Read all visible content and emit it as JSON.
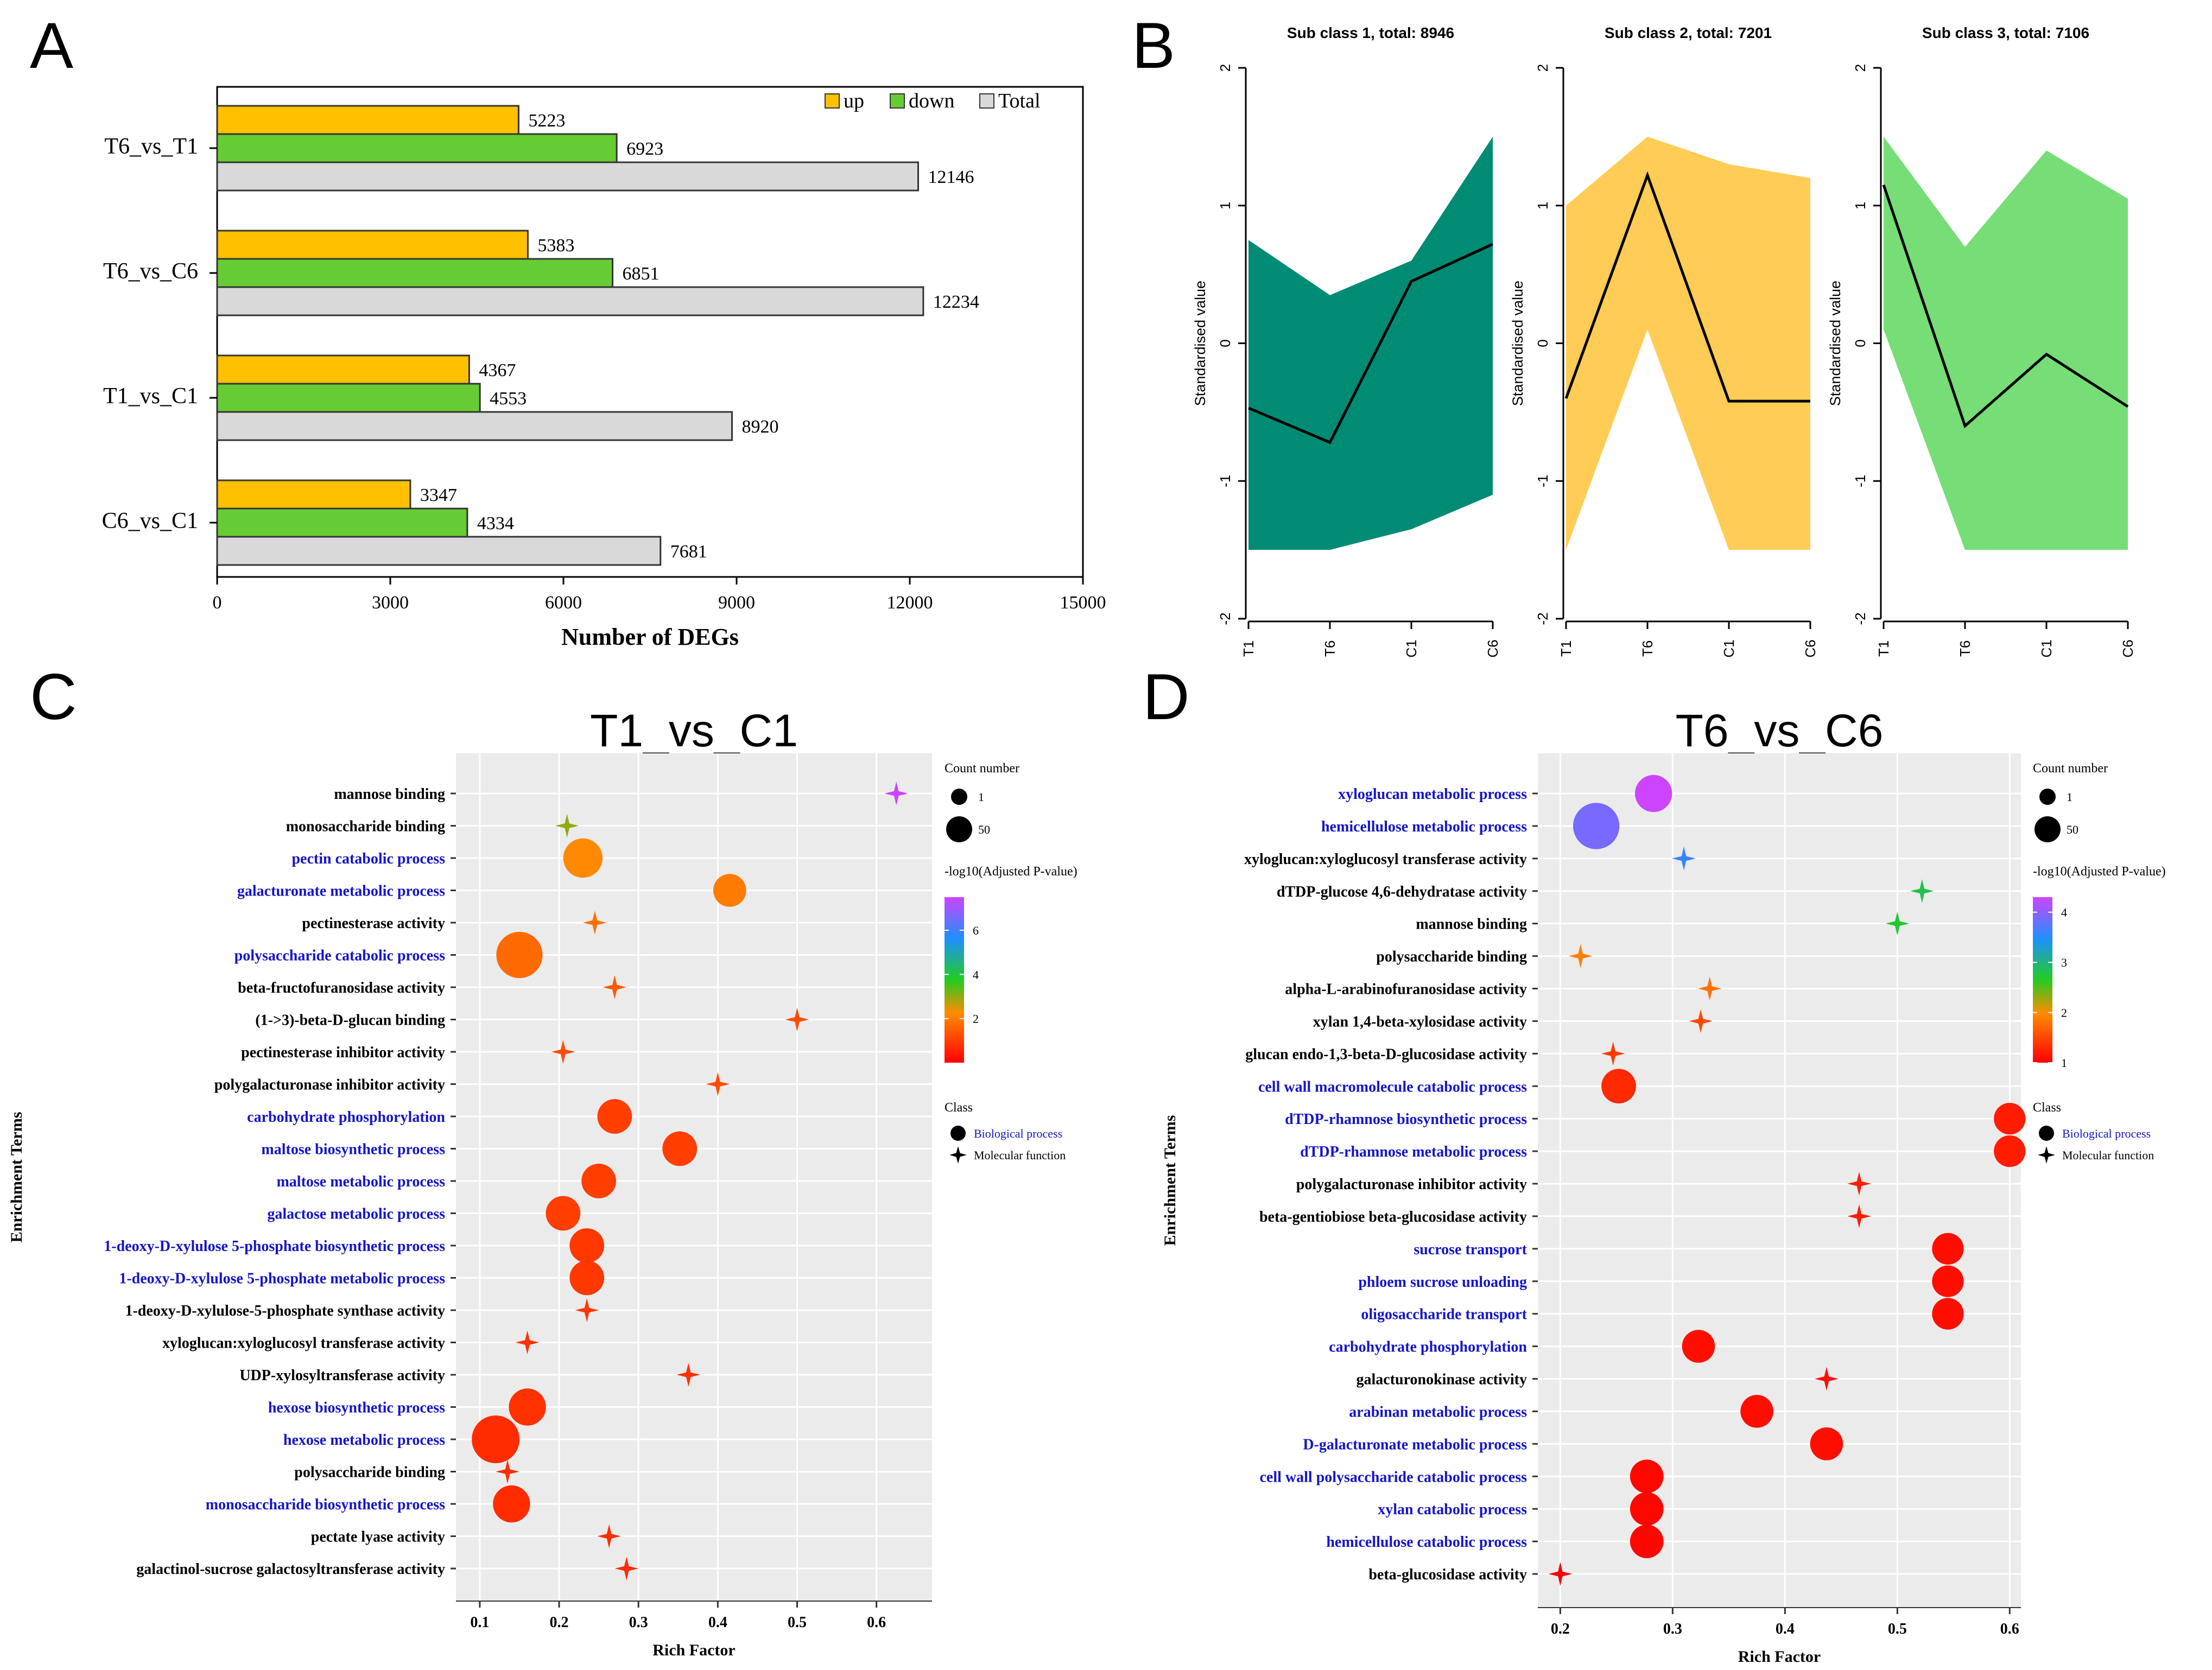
{
  "panels": {
    "a": "A",
    "b": "B",
    "c": "C",
    "d": "D"
  },
  "chart_data": [
    {
      "id": "A",
      "type": "bar",
      "orientation": "horizontal",
      "categories": [
        "T6_vs_T1",
        "T6_vs_C6",
        "T1_vs_C1",
        "C6_vs_C1"
      ],
      "series": [
        {
          "name": "up",
          "color": "#FFC000",
          "values": [
            5223,
            5383,
            4367,
            3347
          ]
        },
        {
          "name": "down",
          "color": "#66CC33",
          "values": [
            6923,
            6851,
            4553,
            4334
          ]
        },
        {
          "name": "Total",
          "color": "#D9D9D9",
          "values": [
            12146,
            12234,
            8920,
            7681
          ]
        }
      ],
      "value_labels": [
        [
          "5223",
          "6923",
          "12146"
        ],
        [
          "5383",
          "6851",
          "12234"
        ],
        [
          "4367",
          "4553",
          "8920"
        ],
        [
          "3347",
          "4334",
          "7681"
        ]
      ],
      "xlabel": "Number of DEGs",
      "xlim": [
        0,
        15000
      ],
      "xticks": [
        "0",
        "3000",
        "6000",
        "9000",
        "12000",
        "15000"
      ],
      "legend": [
        "up",
        "down",
        "Total"
      ]
    },
    {
      "id": "B",
      "type": "line",
      "ylabel": "Standardised value",
      "x_categories": [
        "T1",
        "T6",
        "C1",
        "C6"
      ],
      "ylim": [
        -2,
        2
      ],
      "yticks": [
        "-2",
        "-1",
        "0",
        "1",
        "2"
      ],
      "subplots": [
        {
          "title": "Sub class 1, total: 8946",
          "color": "#008B74",
          "mean": [
            -0.47,
            -0.72,
            0.45,
            0.72
          ],
          "upper": [
            0.75,
            0.35,
            0.6,
            1.5
          ],
          "lower": [
            -1.5,
            -1.5,
            -1.35,
            -1.1
          ]
        },
        {
          "title": "Sub class 2, total: 7201",
          "color": "#FFCC55",
          "mean": [
            -0.4,
            1.22,
            -0.42,
            -0.42
          ],
          "upper": [
            1.0,
            1.5,
            1.3,
            1.2
          ],
          "lower": [
            -1.5,
            0.1,
            -1.5,
            -1.5
          ]
        },
        {
          "title": "Sub class 3, total: 7106",
          "color": "#77DD77",
          "mean": [
            1.15,
            -0.6,
            -0.08,
            -0.46
          ],
          "upper": [
            1.5,
            0.7,
            1.4,
            1.05
          ],
          "lower": [
            0.1,
            -1.5,
            -1.5,
            -1.5
          ]
        }
      ]
    },
    {
      "id": "C",
      "type": "scatter",
      "title": "T1_vs_C1",
      "xlabel": "Rich Factor",
      "ylabel": "Enrichment Terms",
      "xlim": [
        0.07,
        0.67
      ],
      "xticks": [
        0.1,
        0.2,
        0.3,
        0.4,
        0.5,
        0.6
      ],
      "xtick_labels": [
        "0.1",
        "0.2",
        "0.3",
        "0.4",
        "0.5",
        "0.6"
      ],
      "points": [
        {
          "term": "mannose binding",
          "x": 0.625,
          "cls": "mf",
          "count": 1,
          "p": 7.5
        },
        {
          "term": "monosaccharide binding",
          "x": 0.21,
          "cls": "mf",
          "count": 2,
          "p": 3.0
        },
        {
          "term": "pectin catabolic process",
          "x": 0.23,
          "cls": "bp",
          "count": 25,
          "p": 2.2
        },
        {
          "term": "galacturonate metabolic process",
          "x": 0.415,
          "cls": "bp",
          "count": 12,
          "p": 2.0
        },
        {
          "term": "pectinesterase activity",
          "x": 0.245,
          "cls": "mf",
          "count": 3,
          "p": 1.8
        },
        {
          "term": "polysaccharide catabolic process",
          "x": 0.15,
          "cls": "bp",
          "count": 45,
          "p": 1.7
        },
        {
          "term": "beta-fructofuranosidase activity",
          "x": 0.27,
          "cls": "mf",
          "count": 2,
          "p": 1.4
        },
        {
          "term": "(1->3)-beta-D-glucan binding",
          "x": 0.5,
          "cls": "mf",
          "count": 1,
          "p": 1.2
        },
        {
          "term": "pectinesterase inhibitor activity",
          "x": 0.205,
          "cls": "mf",
          "count": 3,
          "p": 1.2
        },
        {
          "term": "polygalacturonase inhibitor activity",
          "x": 0.4,
          "cls": "mf",
          "count": 1,
          "p": 1.2
        },
        {
          "term": "carbohydrate phosphorylation",
          "x": 0.27,
          "cls": "bp",
          "count": 15,
          "p": 1.0
        },
        {
          "term": "maltose biosynthetic process",
          "x": 0.352,
          "cls": "bp",
          "count": 15,
          "p": 1.0
        },
        {
          "term": "maltose metabolic process",
          "x": 0.25,
          "cls": "bp",
          "count": 15,
          "p": 1.0
        },
        {
          "term": "galactose metabolic process",
          "x": 0.205,
          "cls": "bp",
          "count": 15,
          "p": 1.0
        },
        {
          "term": "1-deoxy-D-xylulose 5-phosphate biosynthetic process",
          "x": 0.235,
          "cls": "bp",
          "count": 15,
          "p": 0.9
        },
        {
          "term": "1-deoxy-D-xylulose 5-phosphate metabolic process",
          "x": 0.235,
          "cls": "bp",
          "count": 15,
          "p": 0.9
        },
        {
          "term": "1-deoxy-D-xylulose-5-phosphate synthase activity",
          "x": 0.235,
          "cls": "mf",
          "count": 2,
          "p": 0.9
        },
        {
          "term": "xyloglucan:xyloglucosyl transferase activity",
          "x": 0.16,
          "cls": "mf",
          "count": 4,
          "p": 0.8
        },
        {
          "term": "UDP-xylosyltransferase activity",
          "x": 0.363,
          "cls": "mf",
          "count": 2,
          "p": 0.8
        },
        {
          "term": "hexose biosynthetic process",
          "x": 0.16,
          "cls": "bp",
          "count": 20,
          "p": 0.8
        },
        {
          "term": "hexose metabolic process",
          "x": 0.12,
          "cls": "bp",
          "count": 50,
          "p": 0.7
        },
        {
          "term": "polysaccharide binding",
          "x": 0.135,
          "cls": "mf",
          "count": 5,
          "p": 0.7
        },
        {
          "term": "monosaccharide biosynthetic process",
          "x": 0.14,
          "cls": "bp",
          "count": 20,
          "p": 0.7
        },
        {
          "term": "pectate lyase activity",
          "x": 0.263,
          "cls": "mf",
          "count": 3,
          "p": 0.7
        },
        {
          "term": "galactinol-sucrose galactosyltransferase activity",
          "x": 0.285,
          "cls": "mf",
          "count": 3,
          "p": 0.7
        }
      ],
      "legend": {
        "count_title": "Count number",
        "count_values": [
          "1",
          "50"
        ],
        "color_title": "-log10(Adjusted P-value)",
        "color_ticks": [
          "2",
          "4",
          "6"
        ],
        "color_max": 7.5,
        "class_title": "Class",
        "bp_label": "Biological process",
        "mf_label": "Molecular function"
      }
    },
    {
      "id": "D",
      "type": "scatter",
      "title": "T6_vs_C6",
      "xlabel": "Rich Factor",
      "ylabel": "Enrichment Terms",
      "xlim": [
        0.18,
        0.61
      ],
      "xticks": [
        0.2,
        0.3,
        0.4,
        0.5,
        0.6
      ],
      "xtick_labels": [
        "0.2",
        "0.3",
        "0.4",
        "0.5",
        "0.6"
      ],
      "points": [
        {
          "term": "xyloglucan metabolic process",
          "x": 0.283,
          "cls": "bp",
          "count": 20,
          "p": 4.3
        },
        {
          "term": "hemicellulose metabolic process",
          "x": 0.232,
          "cls": "bp",
          "count": 45,
          "p": 3.9
        },
        {
          "term": "xyloglucan:xyloglucosyl transferase activity",
          "x": 0.31,
          "cls": "mf",
          "count": 5,
          "p": 3.6
        },
        {
          "term": "dTDP-glucose 4,6-dehydratase activity",
          "x": 0.522,
          "cls": "mf",
          "count": 2,
          "p": 2.8
        },
        {
          "term": "mannose binding",
          "x": 0.5,
          "cls": "mf",
          "count": 2,
          "p": 2.7
        },
        {
          "term": "polysaccharide binding",
          "x": 0.218,
          "cls": "mf",
          "count": 6,
          "p": 1.9
        },
        {
          "term": "alpha-L-arabinofuranosidase activity",
          "x": 0.333,
          "cls": "mf",
          "count": 2,
          "p": 1.8
        },
        {
          "term": "xylan 1,4-beta-xylosidase activity",
          "x": 0.325,
          "cls": "mf",
          "count": 2,
          "p": 1.5
        },
        {
          "term": "glucan endo-1,3-beta-D-glucosidase activity",
          "x": 0.247,
          "cls": "mf",
          "count": 3,
          "p": 1.4
        },
        {
          "term": "cell wall macromolecule catabolic process",
          "x": 0.252,
          "cls": "bp",
          "count": 15,
          "p": 1.3
        },
        {
          "term": "dTDP-rhamnose biosynthetic process",
          "x": 0.6,
          "cls": "bp",
          "count": 10,
          "p": 1.2
        },
        {
          "term": "dTDP-rhamnose metabolic process",
          "x": 0.6,
          "cls": "bp",
          "count": 10,
          "p": 1.2
        },
        {
          "term": "polygalacturonase inhibitor activity",
          "x": 0.466,
          "cls": "mf",
          "count": 2,
          "p": 1.2
        },
        {
          "term": "beta-gentiobiose beta-glucosidase activity",
          "x": 0.466,
          "cls": "mf",
          "count": 2,
          "p": 1.2
        },
        {
          "term": "sucrose transport",
          "x": 0.545,
          "cls": "bp",
          "count": 10,
          "p": 1.1
        },
        {
          "term": "phloem sucrose unloading",
          "x": 0.545,
          "cls": "bp",
          "count": 10,
          "p": 1.1
        },
        {
          "term": "oligosaccharide transport",
          "x": 0.545,
          "cls": "bp",
          "count": 10,
          "p": 1.1
        },
        {
          "term": "carbohydrate phosphorylation",
          "x": 0.323,
          "cls": "bp",
          "count": 12,
          "p": 1.1
        },
        {
          "term": "galacturonokinase activity",
          "x": 0.437,
          "cls": "mf",
          "count": 2,
          "p": 1.1
        },
        {
          "term": "arabinan metabolic process",
          "x": 0.375,
          "cls": "bp",
          "count": 12,
          "p": 1.1
        },
        {
          "term": "D-galacturonate metabolic process",
          "x": 0.437,
          "cls": "bp",
          "count": 12,
          "p": 1.1
        },
        {
          "term": "cell wall polysaccharide catabolic process",
          "x": 0.277,
          "cls": "bp",
          "count": 13,
          "p": 1.05
        },
        {
          "term": "xylan catabolic process",
          "x": 0.277,
          "cls": "bp",
          "count": 13,
          "p": 1.05
        },
        {
          "term": "hemicellulose catabolic process",
          "x": 0.277,
          "cls": "bp",
          "count": 13,
          "p": 1.05
        },
        {
          "term": "beta-glucosidase activity",
          "x": 0.2,
          "cls": "mf",
          "count": 6,
          "p": 1.0
        }
      ],
      "legend": {
        "count_title": "Count number",
        "count_values": [
          "1",
          "50"
        ],
        "color_title": "-log10(Adjusted P-value)",
        "color_ticks": [
          "1",
          "2",
          "3",
          "4"
        ],
        "color_min": 1,
        "color_max": 4.3,
        "class_title": "Class",
        "bp_label": "Biological process",
        "mf_label": "Molecular function"
      }
    }
  ]
}
